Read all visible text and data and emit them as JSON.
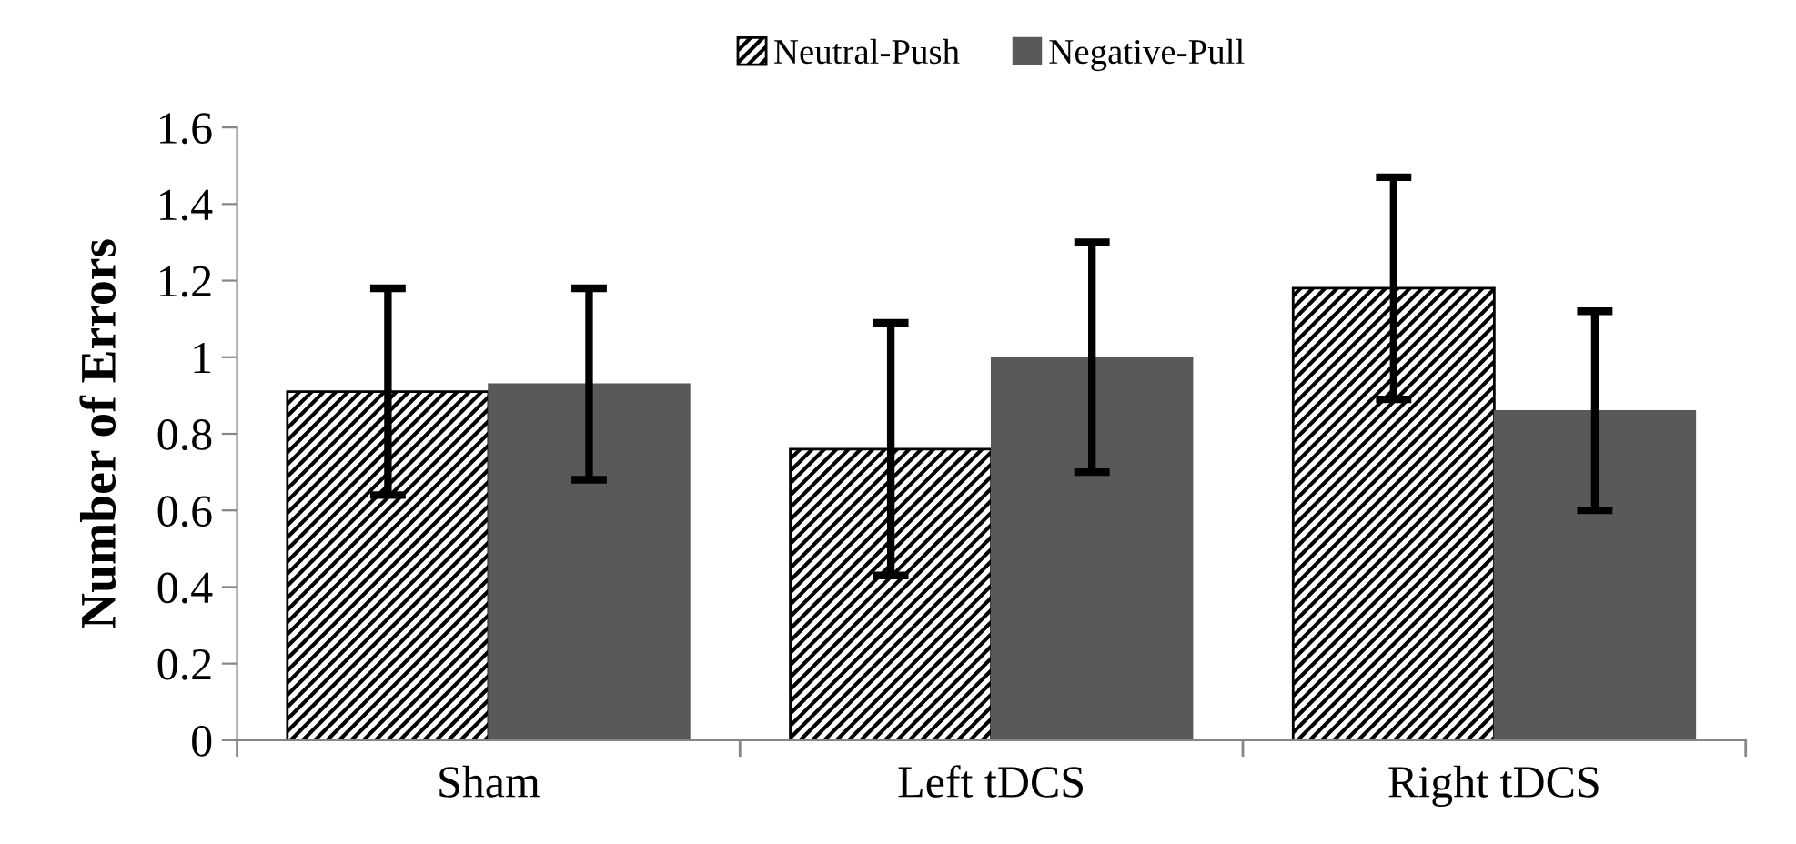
{
  "chart_data": {
    "type": "bar",
    "ylabel": "Number of Errors",
    "categories": [
      "Sham",
      "Left tDCS",
      "Right tDCS"
    ],
    "series": [
      {
        "name": "Neutral-Push",
        "color": "#000000",
        "values": [
          0.91,
          0.76,
          1.18
        ],
        "errors": [
          0.27,
          0.33,
          0.29
        ]
      },
      {
        "name": "Negative-Pull",
        "color": "#595959",
        "values": [
          0.93,
          1.0,
          0.86
        ],
        "errors": [
          0.25,
          0.3,
          0.26
        ]
      }
    ],
    "ylim": [
      0,
      1.6
    ],
    "yticks": [
      0,
      0.2,
      0.4,
      0.6,
      0.8,
      1,
      1.2,
      1.4,
      1.6
    ],
    "grid": false,
    "legend": "top"
  }
}
